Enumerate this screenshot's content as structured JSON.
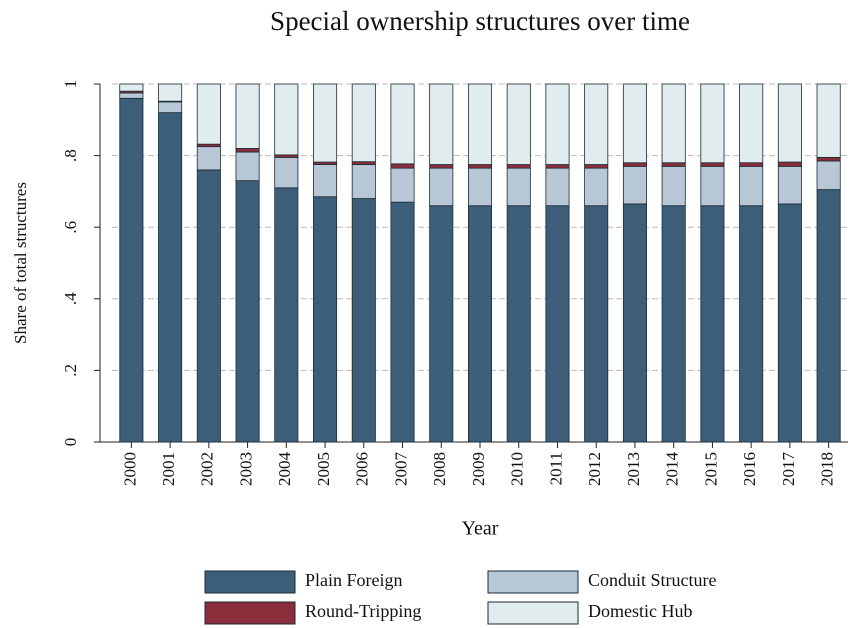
{
  "chart_data": {
    "type": "stacked_bar",
    "title": "Special ownership structures over time",
    "x_label": "Year",
    "y_label": "Share of total structures",
    "categories": [
      "2000",
      "2001",
      "2002",
      "2003",
      "2004",
      "2005",
      "2006",
      "2007",
      "2008",
      "2009",
      "2010",
      "2011",
      "2012",
      "2013",
      "2014",
      "2015",
      "2016",
      "2017",
      "2018"
    ],
    "series": [
      {
        "name": "Plain Foreign",
        "color": "#3d5e78",
        "values": [
          0.96,
          0.92,
          0.76,
          0.73,
          0.71,
          0.685,
          0.68,
          0.67,
          0.66,
          0.66,
          0.66,
          0.66,
          0.66,
          0.665,
          0.66,
          0.66,
          0.66,
          0.665,
          0.705
        ]
      },
      {
        "name": "Conduit Structure",
        "color": "#b7c7d5",
        "values": [
          0.015,
          0.03,
          0.065,
          0.08,
          0.085,
          0.09,
          0.095,
          0.095,
          0.105,
          0.105,
          0.105,
          0.105,
          0.105,
          0.105,
          0.11,
          0.11,
          0.11,
          0.105,
          0.08
        ]
      },
      {
        "name": "Round-Tripping",
        "color": "#8a2e3b",
        "values": [
          0.005,
          0.002,
          0.007,
          0.01,
          0.007,
          0.007,
          0.008,
          0.012,
          0.01,
          0.01,
          0.01,
          0.01,
          0.01,
          0.01,
          0.01,
          0.01,
          0.01,
          0.012,
          0.01
        ]
      },
      {
        "name": "Domestic Hub",
        "color": "#e1ecee",
        "values": [
          0.02,
          0.048,
          0.168,
          0.18,
          0.198,
          0.218,
          0.217,
          0.223,
          0.225,
          0.225,
          0.225,
          0.225,
          0.225,
          0.22,
          0.22,
          0.22,
          0.22,
          0.218,
          0.205
        ]
      }
    ],
    "ylim": [
      0,
      1
    ],
    "yticks": [
      0,
      {
        "value": 0.2,
        "label": ".2"
      },
      {
        "value": 0.4,
        "label": ".4"
      },
      {
        "value": 0.6,
        "label": ".6"
      },
      {
        "value": 0.8,
        "label": ".8"
      },
      1
    ],
    "grid": true
  }
}
